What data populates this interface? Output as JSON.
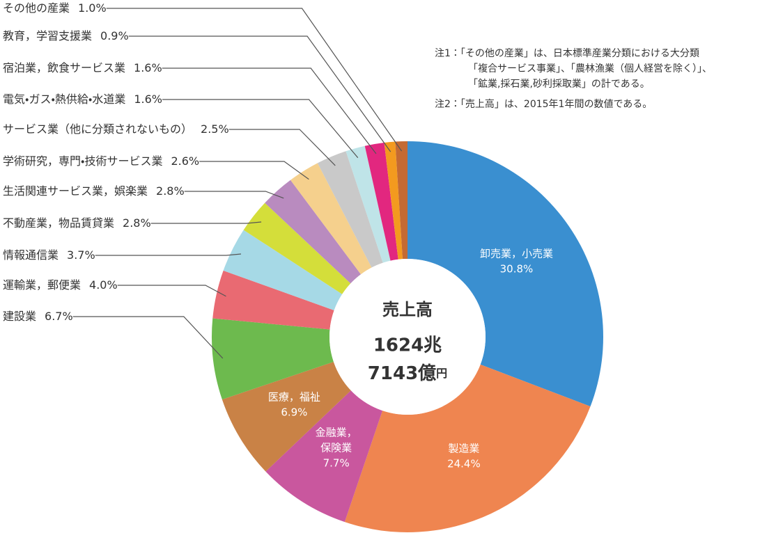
{
  "chart_data": {
    "type": "donut",
    "center": {
      "title": "売上高",
      "line1": "1624兆",
      "line2": "7143億",
      "unit": "円"
    },
    "categories": [
      "卸売業，小売業",
      "製造業",
      "金融業，保険業",
      "医療，福祉",
      "建設業",
      "運輸業，郵便業",
      "情報通信業",
      "不動産業，物品賃貸業",
      "生活関連サービス業，娯楽業",
      "学術研究，専門・技術サービス業",
      "サービス業（他に分類されないもの）",
      "電気・ガス・熱供給・水道業",
      "宿泊業，飲食サービス業",
      "教育，学習支援業",
      "その他の産業"
    ],
    "values": [
      30.8,
      24.4,
      7.7,
      6.9,
      6.7,
      4.0,
      3.7,
      2.8,
      2.8,
      2.6,
      2.5,
      1.6,
      1.6,
      0.9,
      1.0
    ],
    "value_labels": [
      "30.8%",
      "24.4%",
      "7.7%",
      "6.9%",
      "6.7%",
      "4.0%",
      "3.7%",
      "2.8%",
      "2.8%",
      "2.6%",
      "2.5%",
      "1.6%",
      "1.6%",
      "0.9%",
      "1.0%"
    ],
    "colors": [
      "#3a8fd0",
      "#ef8550",
      "#c9579e",
      "#c98246",
      "#6dba4e",
      "#e96a72",
      "#a6d9e6",
      "#d4de3a",
      "#b98bbf",
      "#f5d08d",
      "#c9c9c9",
      "#bfe4e8",
      "#e2277f",
      "#f39a1f",
      "#c46a33"
    ],
    "notes": [
      "注1：「その他の産業」は、日本標準産業分類における大分類",
      "「複合サービス事業」、「農林漁業（個人経営を除く）」、",
      "「鉱業,採石業,砂利採取業」の計である。",
      "注2：「売上高」は、2015年1年間の数値である。"
    ]
  }
}
